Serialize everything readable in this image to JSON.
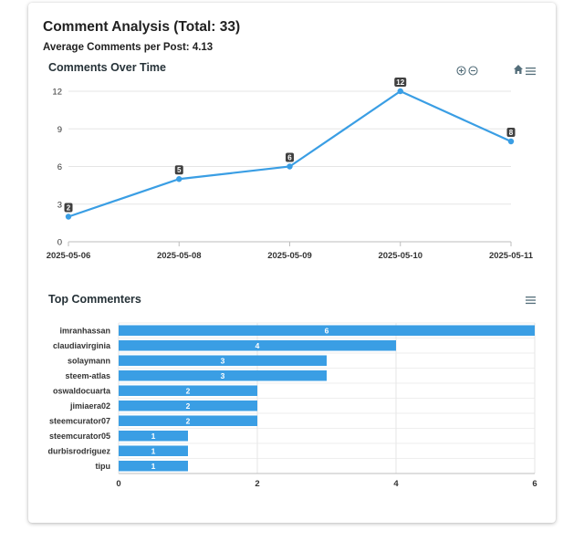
{
  "panel": {
    "title": "Comment Analysis (Total: 33)",
    "average": "Average Comments per Post: 4.13"
  },
  "colors": {
    "series": "#3a9ee4",
    "label_bg": "#404040",
    "grid": "#e5e5e5",
    "icon": "#546e7a"
  },
  "toolbar": {
    "line_icons": [
      "zoom-in-icon",
      "zoom-out-icon",
      "home-icon",
      "menu-icon"
    ],
    "bar_icons": [
      "menu-icon"
    ]
  },
  "chart_data": [
    {
      "type": "line",
      "title": "Comments Over Time",
      "x": [
        "2025-05-06",
        "2025-05-08",
        "2025-05-09",
        "2025-05-10",
        "2025-05-11"
      ],
      "values": [
        2,
        5,
        6,
        12,
        8
      ],
      "ylim": [
        0,
        12
      ],
      "yticks": [
        0,
        3,
        6,
        9,
        12
      ],
      "grid": true,
      "data_labels": true
    },
    {
      "type": "bar",
      "orientation": "horizontal",
      "title": "Top Commenters",
      "categories": [
        "imranhassan",
        "claudiavirginia",
        "solaymann",
        "steem-atlas",
        "oswaldocuarta",
        "jimiaera02",
        "steemcurator07",
        "steemcurator05",
        "durbisrodriguez",
        "tipu"
      ],
      "values": [
        6,
        4,
        3,
        3,
        2,
        2,
        2,
        1,
        1,
        1
      ],
      "xlim": [
        0,
        6
      ],
      "xticks": [
        0,
        2,
        4,
        6
      ],
      "grid": true,
      "data_labels": true
    }
  ]
}
